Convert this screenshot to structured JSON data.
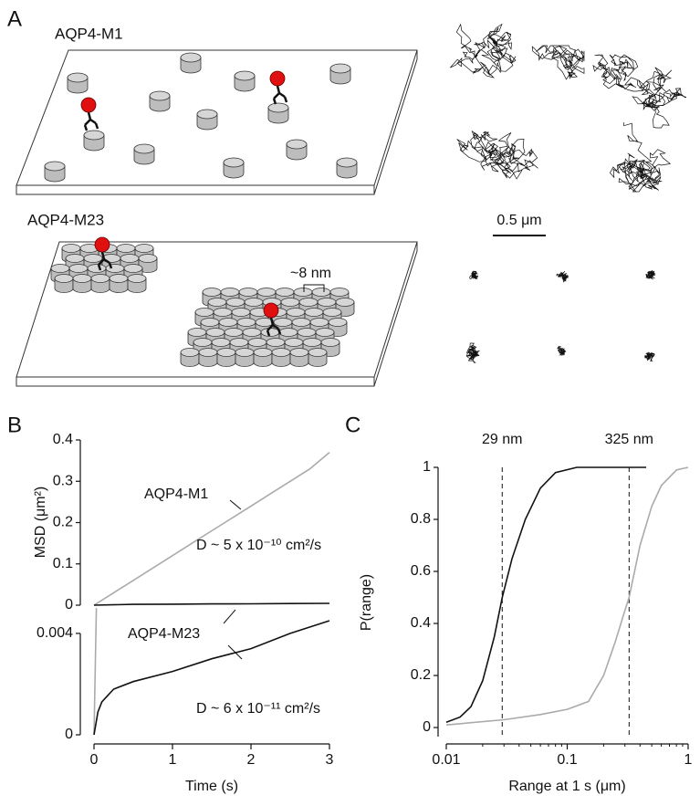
{
  "panels": {
    "a": "A",
    "b": "B",
    "c": "C"
  },
  "diagram": {
    "m1_label": "AQP4-M1",
    "m23_label": "AQP4-M23",
    "spacing_label": "~8 nm",
    "scale_bar_label": "0.5 μm"
  },
  "chart_data": [
    {
      "type": "line",
      "ylabel": "MSD (μm²)",
      "annotations": [
        "AQP4-M1",
        "D ~ 5 x 10⁻¹⁰ cm²/s"
      ],
      "xlim": [
        0,
        3
      ],
      "ylim": [
        0,
        0.4
      ],
      "yticks": [
        0,
        0.1,
        0.2,
        0.3,
        0.4
      ],
      "series": [
        {
          "color": "#aaaaaa",
          "x": [
            0,
            0.25,
            0.5,
            0.75,
            1,
            1.25,
            1.5,
            1.75,
            2,
            2.25,
            2.5,
            2.75,
            3
          ],
          "values": [
            0,
            0.03,
            0.06,
            0.09,
            0.12,
            0.15,
            0.18,
            0.21,
            0.24,
            0.27,
            0.3,
            0.33,
            0.37
          ]
        },
        {
          "color": "#111111",
          "x": [
            0,
            0.5,
            1,
            1.5,
            2,
            2.5,
            3
          ],
          "values": [
            0,
            0.002,
            0.0025,
            0.003,
            0.0034,
            0.004,
            0.0045
          ]
        }
      ]
    },
    {
      "type": "line",
      "xlabel": "Time (s)",
      "annotations": [
        "AQP4-M23",
        "D ~ 6 x 10⁻¹¹ cm²/s"
      ],
      "xlim": [
        0,
        3
      ],
      "xticks": [
        0,
        1,
        2,
        3
      ],
      "ylim": [
        0,
        0.0054
      ],
      "yticks": [
        0,
        0.004
      ],
      "series": [
        {
          "color": "#aaaaaa",
          "x": [
            0,
            0.015,
            0.03
          ],
          "values": [
            0,
            0.0025,
            0.005
          ]
        },
        {
          "color": "#111111",
          "x": [
            0,
            0.05,
            0.1,
            0.25,
            0.5,
            1,
            1.5,
            2,
            2.5,
            3
          ],
          "values": [
            0,
            0.0009,
            0.0013,
            0.0018,
            0.0021,
            0.0025,
            0.003,
            0.0034,
            0.004,
            0.0045
          ]
        }
      ]
    },
    {
      "type": "line",
      "xlabel": "Range at 1 s (μm)",
      "ylabel": "P(range)",
      "xscale": "log",
      "xlim": [
        0.01,
        1
      ],
      "xticks": [
        0.01,
        0.1,
        1
      ],
      "ylim": [
        -0.035,
        1
      ],
      "yticks": [
        0,
        0.2,
        0.4,
        0.6,
        0.8,
        1
      ],
      "reference_lines": [
        {
          "value": 0.029,
          "label": "29 nm"
        },
        {
          "value": 0.325,
          "label": "325 nm"
        }
      ],
      "series": [
        {
          "color": "#111111",
          "x": [
            0.01,
            0.013,
            0.016,
            0.02,
            0.025,
            0.029,
            0.035,
            0.045,
            0.06,
            0.08,
            0.12,
            0.45
          ],
          "values": [
            0.02,
            0.04,
            0.08,
            0.18,
            0.35,
            0.5,
            0.65,
            0.8,
            0.92,
            0.98,
            1,
            1
          ]
        },
        {
          "color": "#aaaaaa",
          "x": [
            0.01,
            0.03,
            0.06,
            0.1,
            0.15,
            0.2,
            0.25,
            0.3,
            0.325,
            0.4,
            0.5,
            0.6,
            0.8,
            1
          ],
          "values": [
            0.01,
            0.03,
            0.05,
            0.07,
            0.1,
            0.2,
            0.33,
            0.45,
            0.5,
            0.7,
            0.85,
            0.93,
            0.99,
            1
          ]
        }
      ]
    }
  ]
}
